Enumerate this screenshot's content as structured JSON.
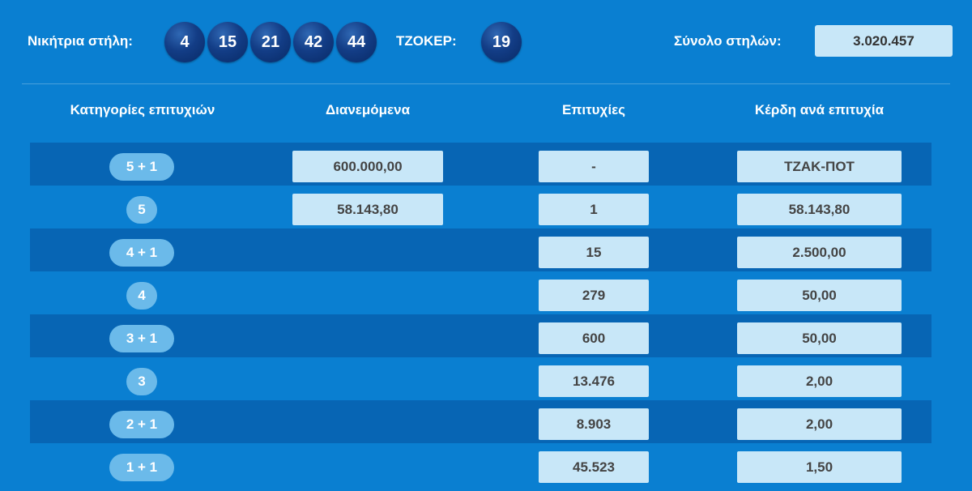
{
  "header": {
    "winning_label": "Νικήτρια στήλη:",
    "numbers": [
      "4",
      "15",
      "21",
      "42",
      "44"
    ],
    "joker_label": "ΤΖΟΚΕΡ:",
    "joker_number": "19",
    "total_label": "Σύνολο στηλών:",
    "total_value": "3.020.457"
  },
  "table": {
    "columns": [
      "Κατηγορίες επιτυχιών",
      "Διανεμόμενα",
      "Επιτυχίες",
      "Κέρδη ανά επιτυχία"
    ],
    "rows": [
      {
        "category": "5 + 1",
        "distributed": "600.000,00",
        "winners": "-",
        "prize": "ΤΖΑΚ-ΠΟΤ"
      },
      {
        "category": "5",
        "distributed": "58.143,80",
        "winners": "1",
        "prize": "58.143,80"
      },
      {
        "category": "4 + 1",
        "distributed": "",
        "winners": "15",
        "prize": "2.500,00"
      },
      {
        "category": "4",
        "distributed": "",
        "winners": "279",
        "prize": "50,00"
      },
      {
        "category": "3 + 1",
        "distributed": "",
        "winners": "600",
        "prize": "50,00"
      },
      {
        "category": "3",
        "distributed": "",
        "winners": "13.476",
        "prize": "2,00"
      },
      {
        "category": "2 + 1",
        "distributed": "",
        "winners": "8.903",
        "prize": "2,00"
      },
      {
        "category": "1 + 1",
        "distributed": "",
        "winners": "45.523",
        "prize": "1,50"
      }
    ]
  }
}
